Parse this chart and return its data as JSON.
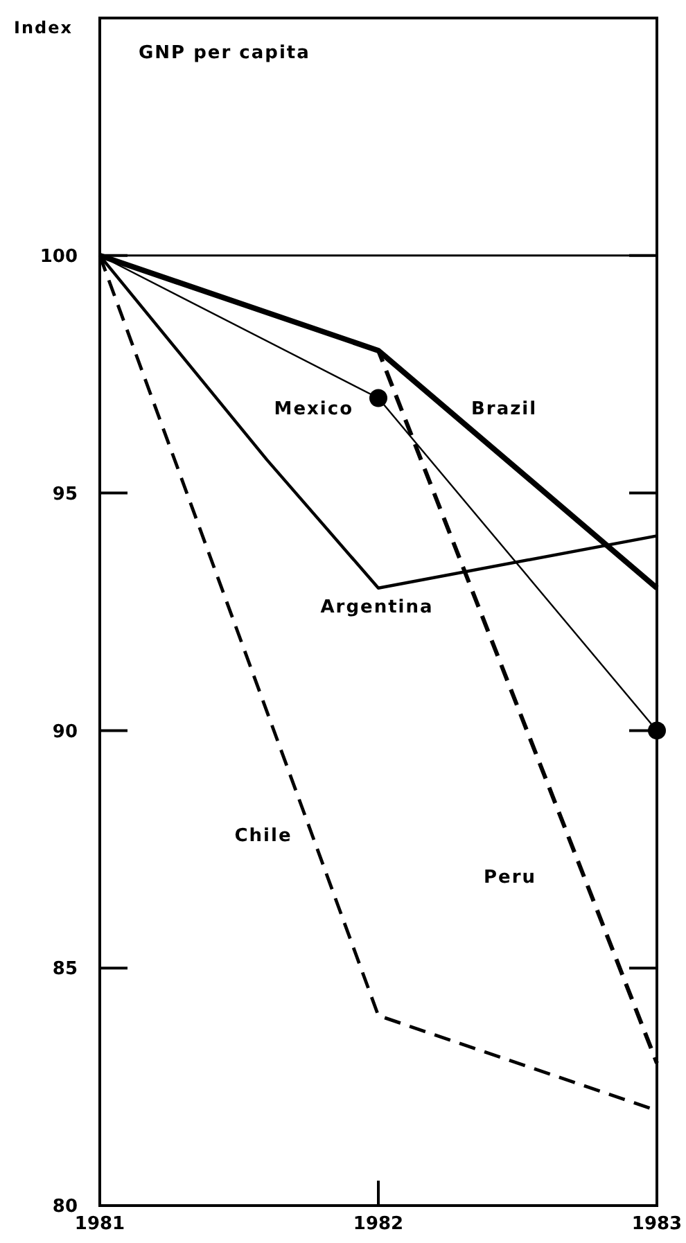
{
  "chart_data": {
    "type": "line",
    "title": "GNP per capita",
    "ylabel": "Index",
    "x": [
      1981,
      1982,
      1983
    ],
    "xlim": [
      1981,
      1983
    ],
    "xticks": [
      1981,
      1982,
      1983
    ],
    "ylim": [
      80,
      105
    ],
    "yticks": [
      80,
      85,
      90,
      95,
      100
    ],
    "line_style": "solid",
    "marker": "none",
    "ref_lines": [
      {
        "axis": "y",
        "value": 100
      }
    ],
    "series": [
      {
        "name": "Brazil",
        "color": "#000000",
        "values": [
          100,
          98,
          93
        ]
      },
      {
        "name": "Mexico",
        "color": "#000000",
        "values": [
          100,
          97,
          90
        ],
        "marker": "circle"
      },
      {
        "name": "Argentina",
        "color": "#000000",
        "x": [
          1981,
          1981.6,
          1982,
          1983
        ],
        "values": [
          100,
          95.7,
          93,
          94.1
        ]
      },
      {
        "name": "Peru",
        "color": "#000000",
        "values": [
          100,
          98,
          83
        ],
        "line_style": "dashed"
      },
      {
        "name": "Chile",
        "color": "#000000",
        "values": [
          100,
          84,
          82
        ],
        "line_style": "dashed"
      }
    ]
  }
}
